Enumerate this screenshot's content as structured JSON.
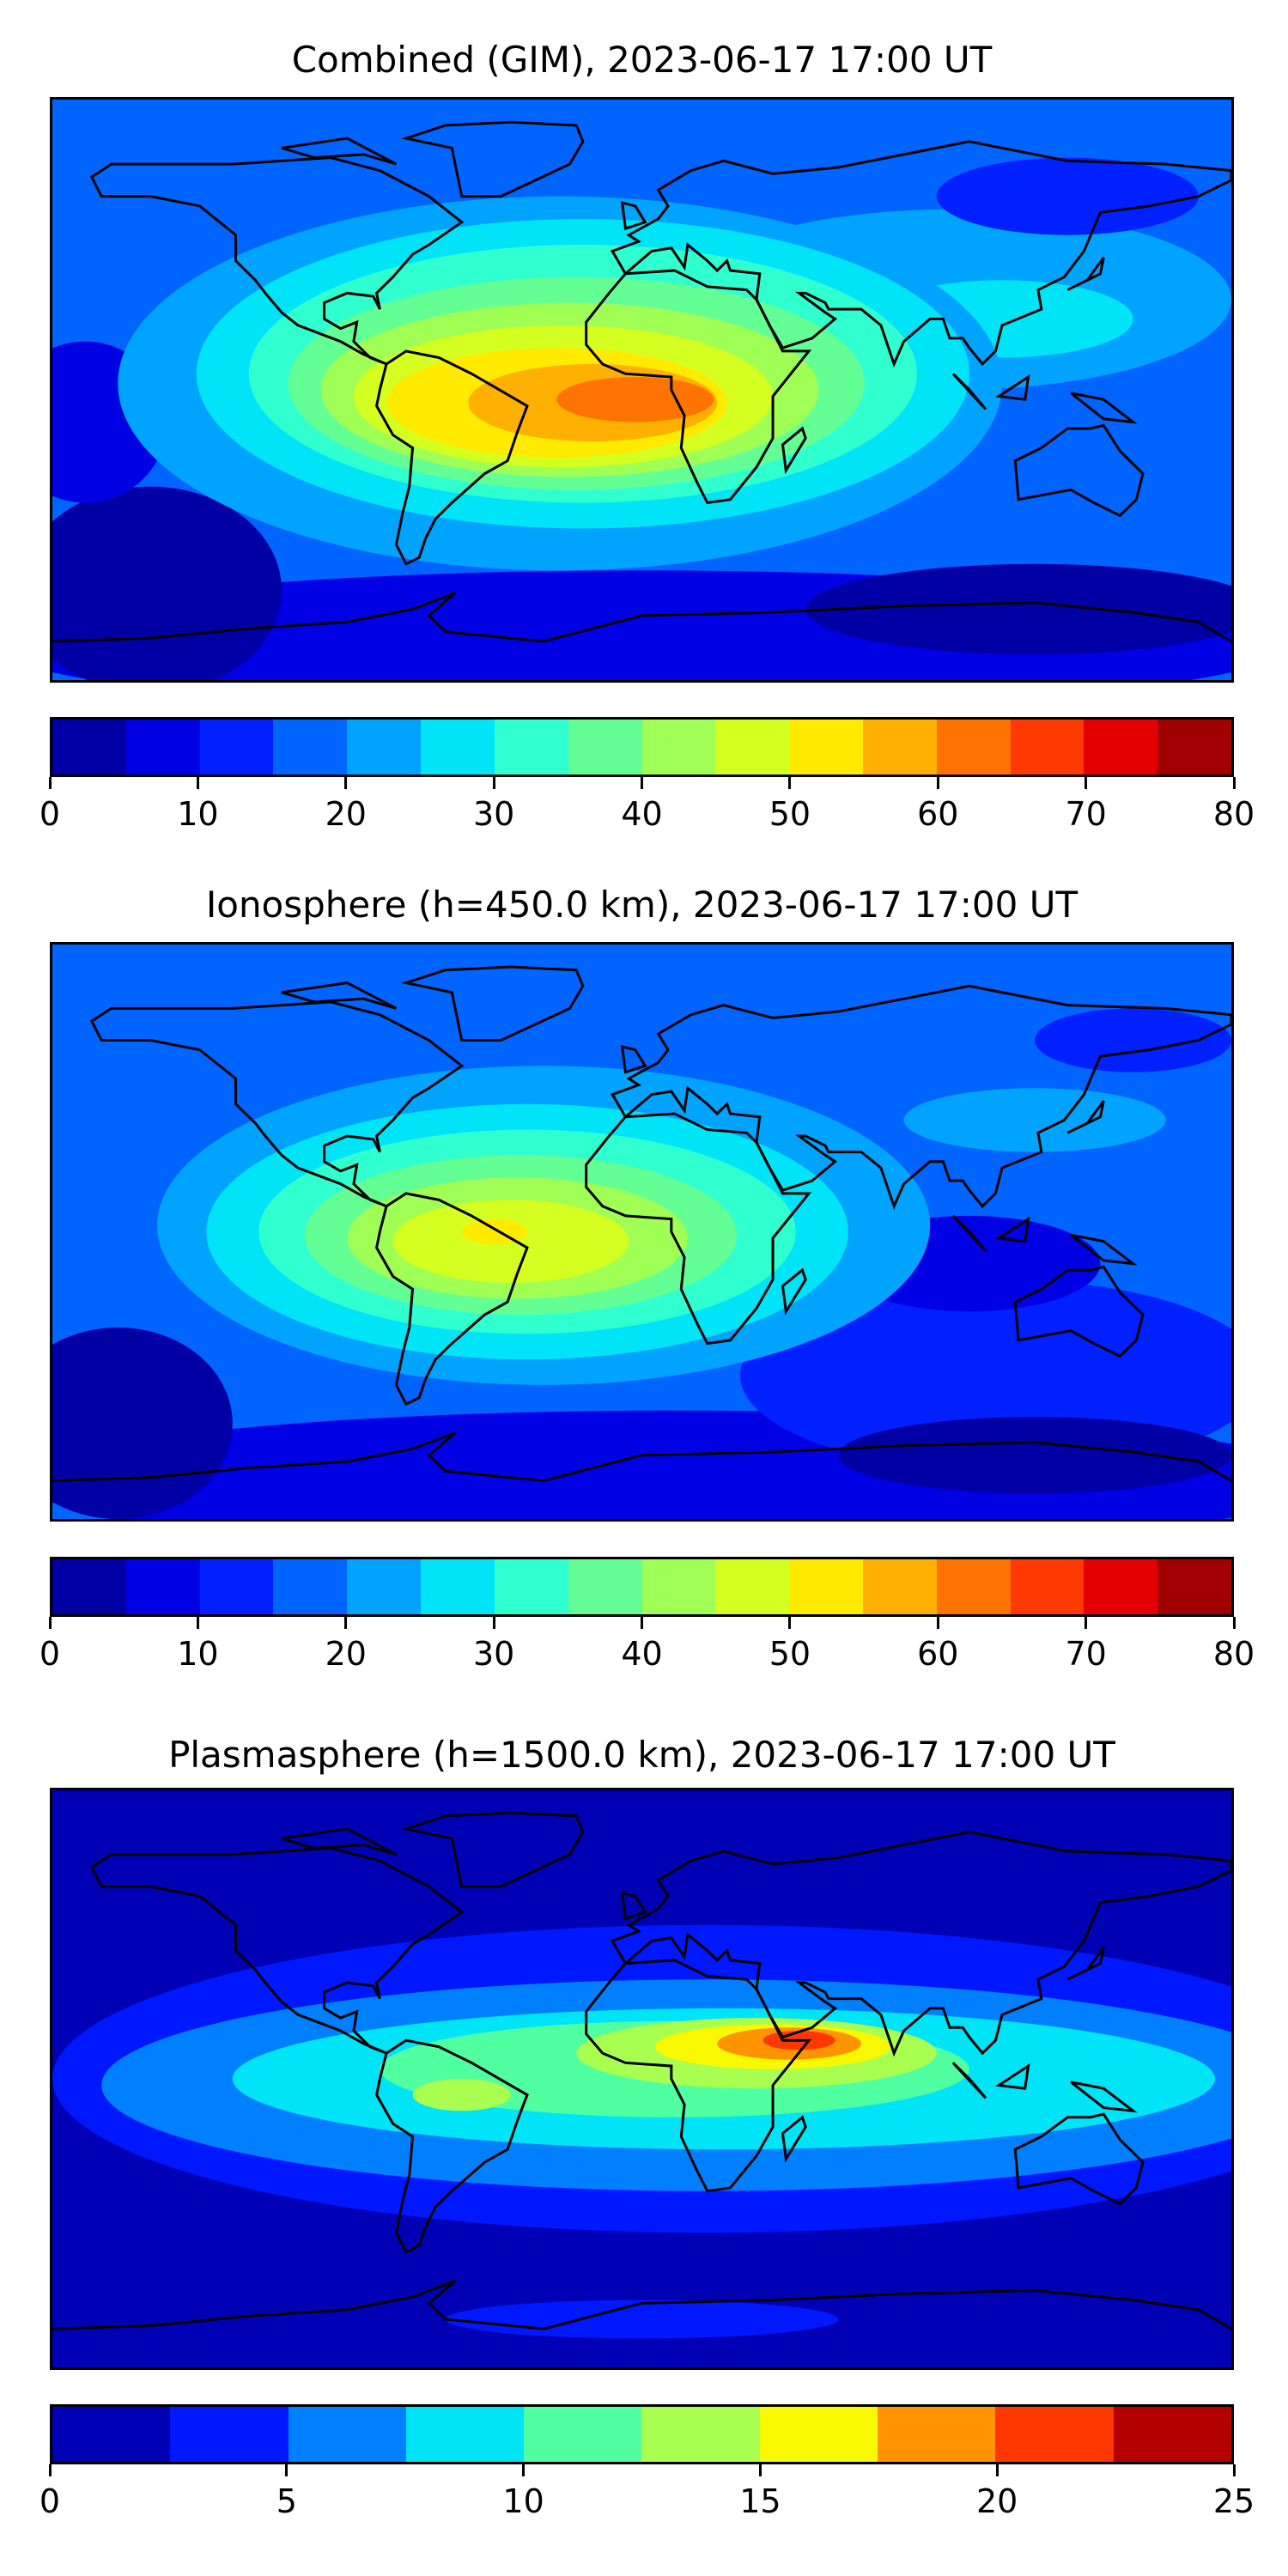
{
  "chart_data": [
    {
      "type": "heatmap",
      "subtype": "filled-contour-map",
      "title": "Combined (GIM), 2023-06-17 17:00 UT",
      "projection": "equirectangular",
      "lon_range": [
        -180,
        180
      ],
      "lat_range": [
        -90,
        90
      ],
      "colorbar": {
        "range": [
          0,
          80
        ],
        "step": 5,
        "ticks": [
          "0",
          "10",
          "20",
          "30",
          "40",
          "50",
          "60",
          "70",
          "80"
        ],
        "colors": [
          "#0000a4",
          "#0000e4",
          "#0020ff",
          "#0064ff",
          "#00a4ff",
          "#00e4f8",
          "#30ffd0",
          "#64ff94",
          "#a0ff54",
          "#d4ff20",
          "#ffea00",
          "#ffb000",
          "#ff7400",
          "#ff3a00",
          "#e40000",
          "#a00000"
        ]
      },
      "peak": {
        "lon": -20,
        "lat": -5,
        "value_range": [
          60,
          65
        ]
      }
    },
    {
      "type": "heatmap",
      "subtype": "filled-contour-map",
      "title": "Ionosphere  (h=450.0 km), 2023-06-17 17:00 UT",
      "projection": "equirectangular",
      "lon_range": [
        -180,
        180
      ],
      "lat_range": [
        -90,
        90
      ],
      "colorbar": {
        "range": [
          0,
          80
        ],
        "step": 5,
        "ticks": [
          "0",
          "10",
          "20",
          "30",
          "40",
          "50",
          "60",
          "70",
          "80"
        ],
        "colors": [
          "#0000a4",
          "#0000e4",
          "#0020ff",
          "#0064ff",
          "#00a4ff",
          "#00e4f8",
          "#30ffd0",
          "#64ff94",
          "#a0ff54",
          "#d4ff20",
          "#ffea00",
          "#ffb000",
          "#ff7400",
          "#ff3a00",
          "#e40000",
          "#a00000"
        ]
      },
      "peak": {
        "lon": -45,
        "lat": 0,
        "value_range": [
          50,
          55
        ]
      }
    },
    {
      "type": "heatmap",
      "subtype": "filled-contour-map",
      "title": "Plasmasphere (h=1500.0 km), 2023-06-17 17:00 UT",
      "projection": "equirectangular",
      "lon_range": [
        -180,
        180
      ],
      "lat_range": [
        -90,
        90
      ],
      "colorbar": {
        "range": [
          0,
          25
        ],
        "step": 2.5,
        "ticks": [
          "0",
          "5",
          "10",
          "15",
          "20",
          "25"
        ],
        "colors": [
          "#0000b4",
          "#0018ff",
          "#0080ff",
          "#00e4f8",
          "#50ffa0",
          "#a8ff50",
          "#f8f800",
          "#ff9400",
          "#ff3800",
          "#b40000"
        ]
      },
      "peak": {
        "lon": 45,
        "lat": 12,
        "value_range": [
          20,
          22.5
        ]
      }
    }
  ]
}
